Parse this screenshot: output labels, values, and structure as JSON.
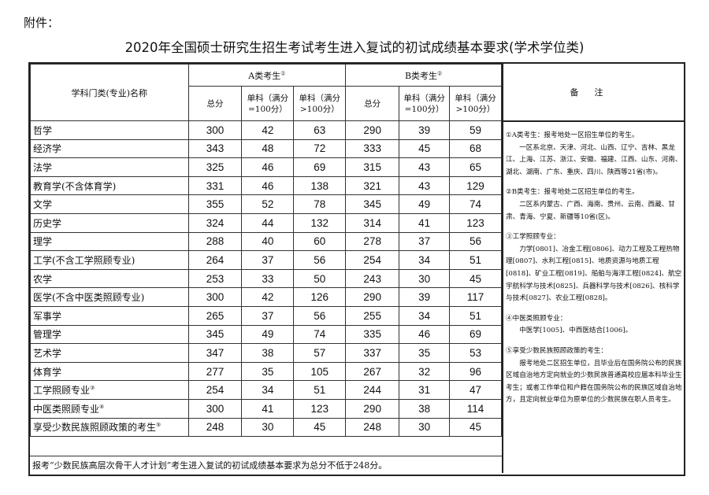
{
  "attachment": "附件：",
  "title": "2020年全国硕士研究生招生考试考生进入复试的初试成绩基本要求(学术学位类)",
  "header": {
    "name": "学科门类(专业)名称",
    "groupA": "A类考生",
    "groupA_sup": "①",
    "groupB": "B类考生",
    "groupB_sup": "②",
    "total": "总分",
    "single100": "单科（满分=100分）",
    "single_gt100": "单科（满分>100分）",
    "notes": "备注"
  },
  "rows": [
    {
      "name": "哲学",
      "sup": "",
      "a": [
        "300",
        "42",
        "63"
      ],
      "b": [
        "290",
        "39",
        "59"
      ]
    },
    {
      "name": "经济学",
      "sup": "",
      "a": [
        "343",
        "48",
        "72"
      ],
      "b": [
        "333",
        "45",
        "68"
      ]
    },
    {
      "name": "法学",
      "sup": "",
      "a": [
        "325",
        "46",
        "69"
      ],
      "b": [
        "315",
        "43",
        "65"
      ]
    },
    {
      "name": "教育学(不含体育学)",
      "sup": "",
      "a": [
        "331",
        "46",
        "138"
      ],
      "b": [
        "321",
        "43",
        "129"
      ]
    },
    {
      "name": "文学",
      "sup": "",
      "a": [
        "355",
        "52",
        "78"
      ],
      "b": [
        "345",
        "49",
        "74"
      ]
    },
    {
      "name": "历史学",
      "sup": "",
      "a": [
        "324",
        "44",
        "132"
      ],
      "b": [
        "314",
        "41",
        "123"
      ]
    },
    {
      "name": "理学",
      "sup": "",
      "a": [
        "288",
        "40",
        "60"
      ],
      "b": [
        "278",
        "37",
        "56"
      ]
    },
    {
      "name": "工学(不含工学照顾专业)",
      "sup": "",
      "a": [
        "264",
        "37",
        "56"
      ],
      "b": [
        "254",
        "34",
        "51"
      ]
    },
    {
      "name": "农学",
      "sup": "",
      "a": [
        "253",
        "33",
        "50"
      ],
      "b": [
        "243",
        "30",
        "45"
      ]
    },
    {
      "name": "医学(不含中医类照顾专业)",
      "sup": "",
      "a": [
        "300",
        "42",
        "126"
      ],
      "b": [
        "290",
        "39",
        "117"
      ]
    },
    {
      "name": "军事学",
      "sup": "",
      "a": [
        "265",
        "37",
        "56"
      ],
      "b": [
        "255",
        "34",
        "51"
      ]
    },
    {
      "name": "管理学",
      "sup": "",
      "a": [
        "345",
        "49",
        "74"
      ],
      "b": [
        "335",
        "46",
        "69"
      ]
    },
    {
      "name": "艺术学",
      "sup": "",
      "a": [
        "347",
        "38",
        "57"
      ],
      "b": [
        "337",
        "35",
        "53"
      ]
    },
    {
      "name": "体育学",
      "sup": "",
      "a": [
        "277",
        "35",
        "105"
      ],
      "b": [
        "267",
        "32",
        "96"
      ]
    },
    {
      "name": "工学照顾专业",
      "sup": "③",
      "a": [
        "254",
        "34",
        "51"
      ],
      "b": [
        "244",
        "31",
        "47"
      ]
    },
    {
      "name": "中医类照顾专业",
      "sup": "④",
      "a": [
        "300",
        "41",
        "123"
      ],
      "b": [
        "290",
        "38",
        "114"
      ]
    },
    {
      "name": "享受少数民族照顾政策的考生",
      "sup": "⑤",
      "a": [
        "248",
        "30",
        "45"
      ],
      "b": [
        "248",
        "30",
        "45"
      ]
    }
  ],
  "footer": "报考“少数民族高层次骨干人才计划”考生进入复试的初试成绩基本要求为总分不低于248分。",
  "notes": [
    {
      "title": "①A类考生：报考地处一区招生单位的考生。",
      "body": "一区系北京、天津、河北、山西、辽宁、吉林、黑龙江、上海、江苏、浙江、安徽、福建、江西、山东、河南、湖北、湖南、广东、重庆、四川、陕西等21省(市)。"
    },
    {
      "title": "②B类考生：报考地处二区招生单位的考生。",
      "body": "二区系内蒙古、广西、海南、贵州、云南、西藏、甘肃、青海、宁夏、新疆等10省(区)。"
    },
    {
      "title": "③工学照顾专业：",
      "body": "力学[0801]、冶金工程[0806]、动力工程及工程热物理[0807]、水利工程[0815]、地质资源与地质工程[0818]、矿业工程[0819]、船舶与海洋工程[0824]、航空宇航科学与技术[0825]、兵器科学与技术[0826]、核科学与技术[0827]、农业工程[0828]。"
    },
    {
      "title": "④中医类照顾专业：",
      "body": "中医学[1005]、中西医结合[1006]。"
    },
    {
      "title": "⑤享受少数民族照顾政策的考生：",
      "body": "报考地处二区招生单位，且毕业后在国务院公布的民族区域自治地方定向就业的少数民族普通高校应届本科毕业生考生；或者工作单位和户籍在国务院公布的民族区域自治地方，且定向就业单位为原单位的少数民族在职人员考生。"
    }
  ]
}
